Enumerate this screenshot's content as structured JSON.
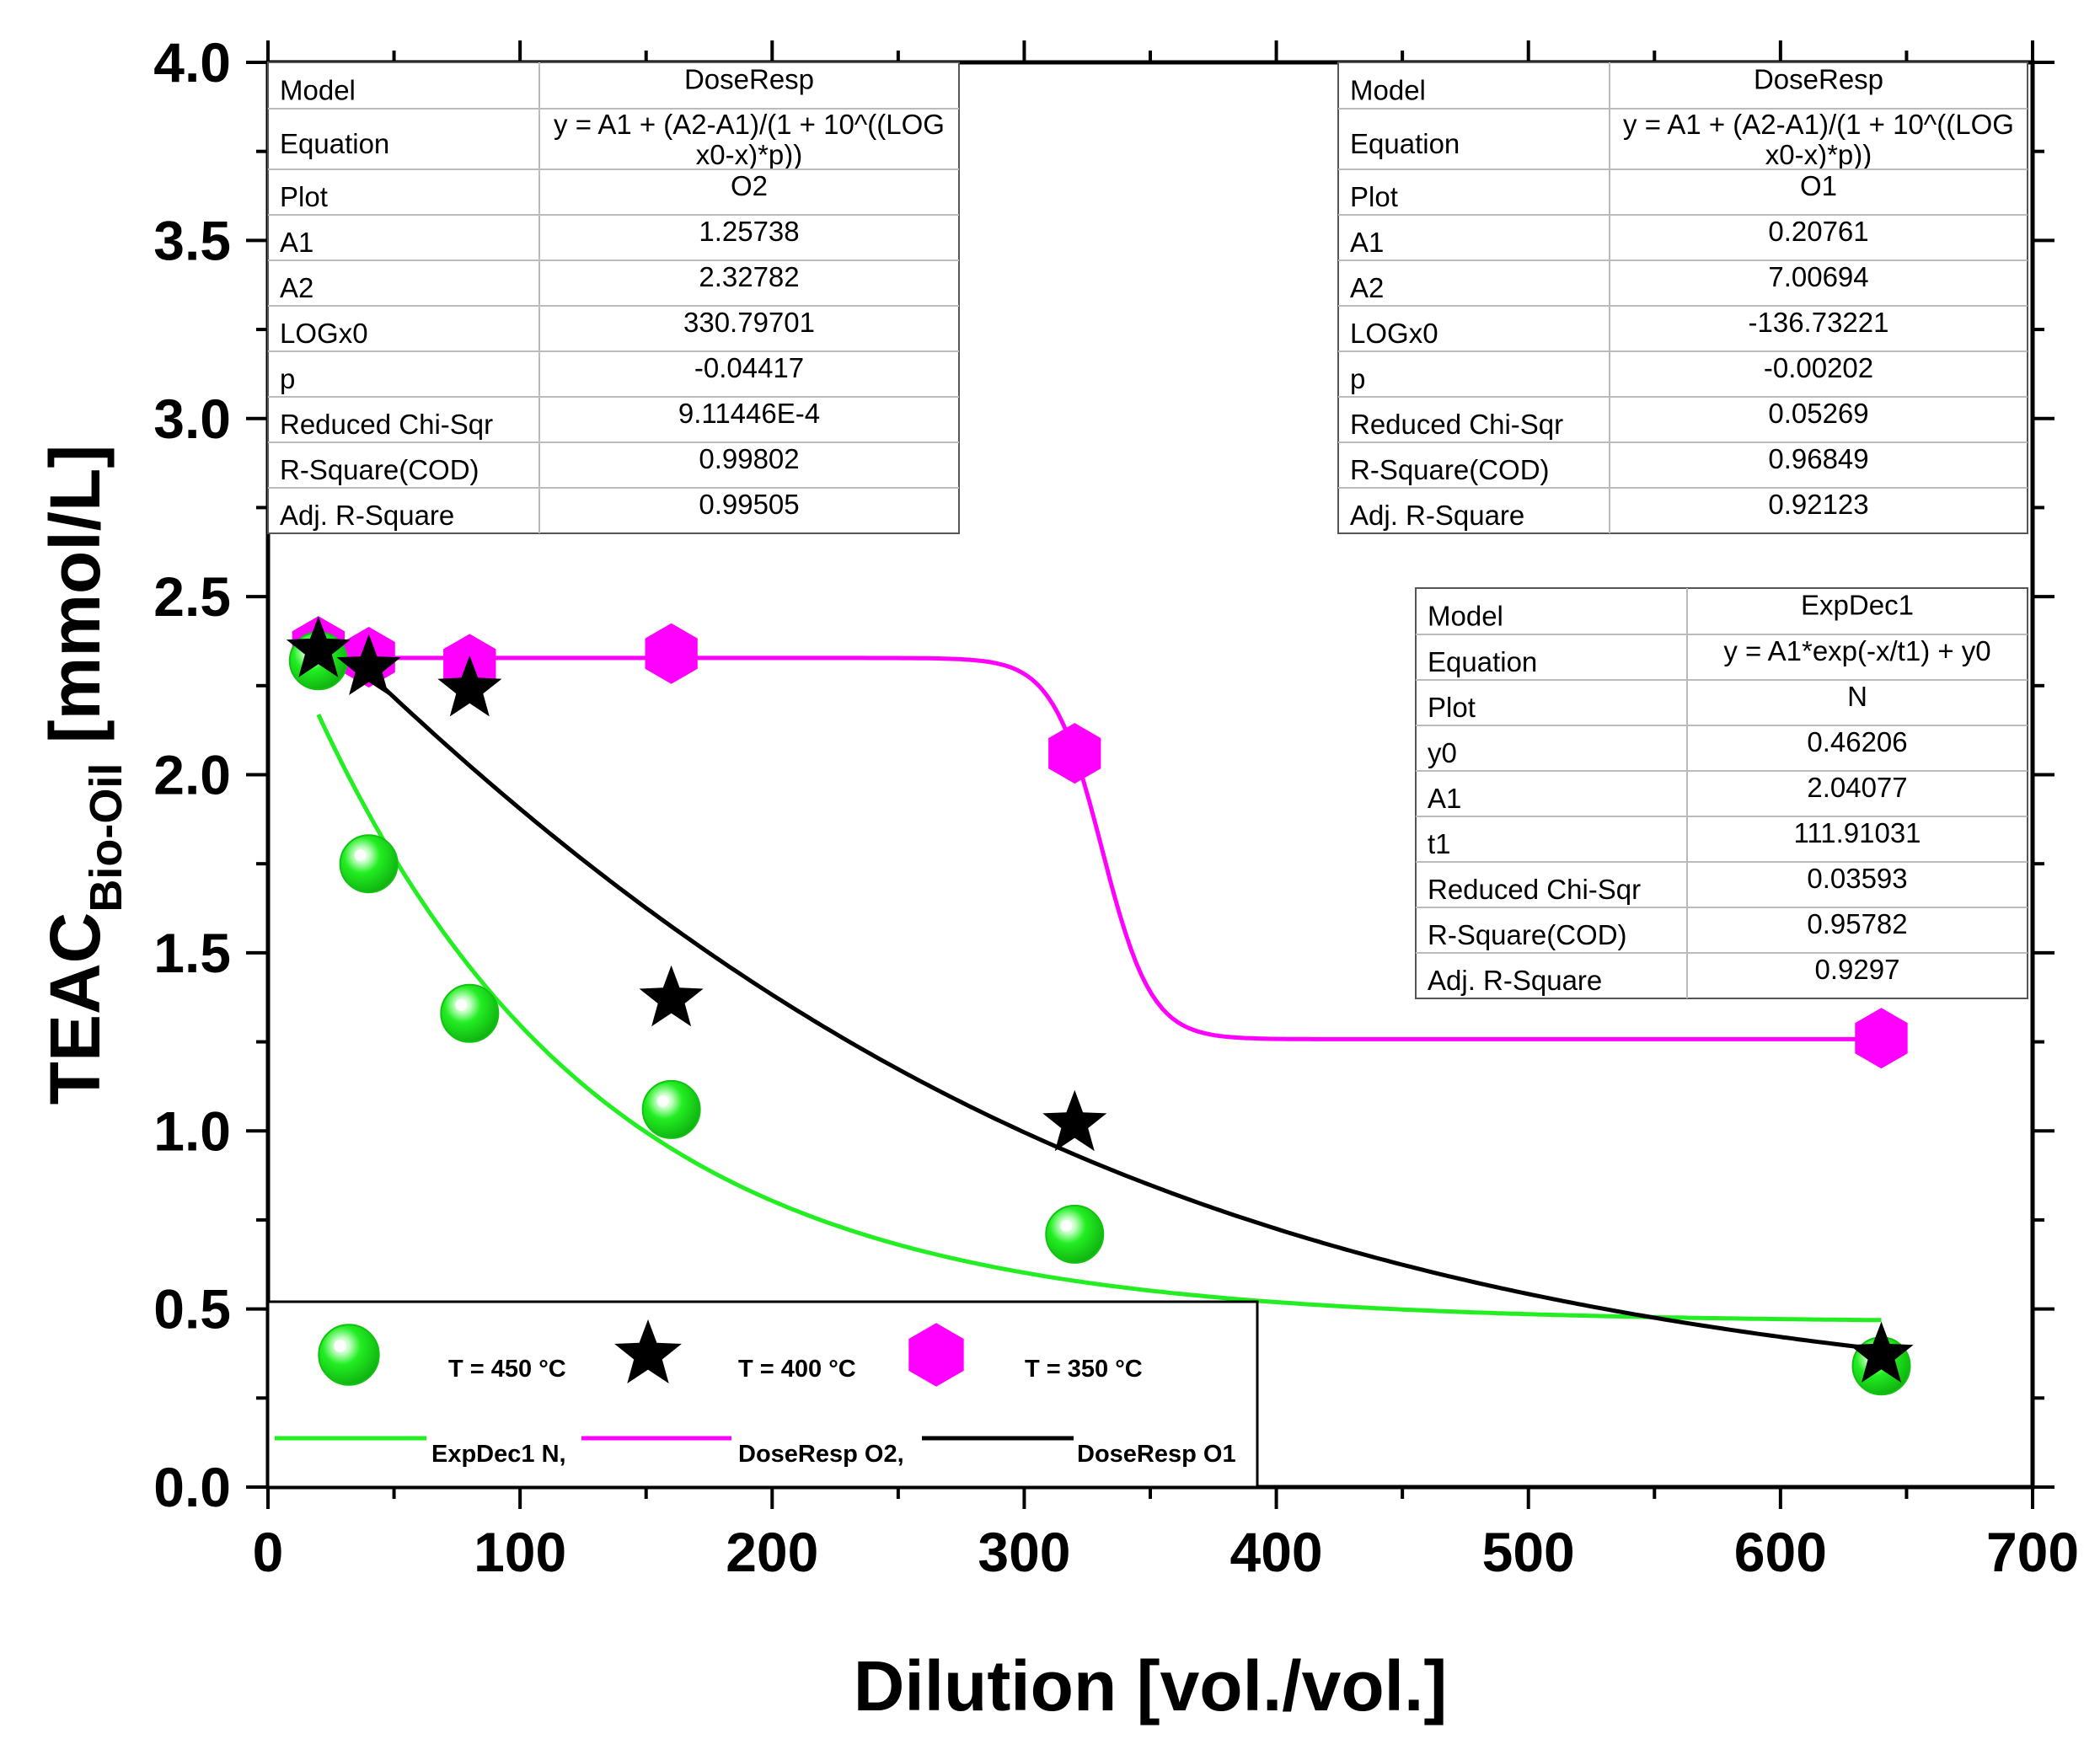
{
  "chart_data": {
    "type": "scatter",
    "xlabel": "Dilution [vol./vol.]",
    "ylabel": {
      "main": "TEAC",
      "sub": "Bio-Oil",
      "unit": " [mmol/L]"
    },
    "xlim": [
      0,
      700
    ],
    "ylim": [
      0.0,
      4.0
    ],
    "xticks": [
      "0",
      "100",
      "200",
      "300",
      "400",
      "500",
      "600",
      "700"
    ],
    "yticks": [
      "0.0",
      "0.5",
      "1.0",
      "1.5",
      "2.0",
      "2.5",
      "3.0",
      "3.5",
      "4.0"
    ],
    "grid": false,
    "series": [
      {
        "name": "T = 450 °C",
        "marker": "sphere",
        "color": "#22ee22",
        "points": [
          [
            20,
            2.32
          ],
          [
            40,
            1.75
          ],
          [
            80,
            1.33
          ],
          [
            160,
            1.06
          ],
          [
            320,
            0.71
          ],
          [
            640,
            0.34
          ]
        ]
      },
      {
        "name": "T = 400 °C",
        "marker": "star",
        "color": "#000000",
        "points": [
          [
            20,
            2.35
          ],
          [
            40,
            2.3
          ],
          [
            80,
            2.24
          ],
          [
            160,
            1.37
          ],
          [
            320,
            1.02
          ],
          [
            640,
            0.37
          ]
        ]
      },
      {
        "name": "T = 350 °C",
        "marker": "hexagon",
        "color": "#ff00ff",
        "points": [
          [
            20,
            2.36
          ],
          [
            40,
            2.33
          ],
          [
            80,
            2.31
          ],
          [
            160,
            2.34
          ],
          [
            320,
            2.06
          ],
          [
            640,
            1.26
          ]
        ]
      }
    ],
    "fits": [
      {
        "name": "ExpDec1 N,",
        "color": "#22ee22",
        "model": "ExpDec1",
        "params": {
          "y0": 0.46206,
          "A1": 2.04077,
          "t1": 111.91031
        },
        "x_range": [
          20,
          640
        ]
      },
      {
        "name": "DoseResp O2,",
        "color": "#ff00ff",
        "model": "DoseResp",
        "params": {
          "A1": 1.25738,
          "A2": 2.32782,
          "LOGx0": 330.79701,
          "p": -0.04417
        },
        "x_range": [
          20,
          640
        ]
      },
      {
        "name": "DoseResp O1",
        "color": "#000000",
        "model": "DoseResp",
        "params": {
          "A1": 0.20761,
          "A2": 7.00694,
          "LOGx0": -136.73221,
          "p": -0.00202
        },
        "x_range": [
          20,
          640
        ]
      }
    ],
    "legend": {
      "placement": "bottom-left"
    },
    "tables": [
      {
        "id": "o2",
        "placement": "top-left",
        "rows": [
          [
            "Model",
            "DoseResp"
          ],
          [
            "Equation",
            "y = A1 + (A2-A1)/(1 + 10^((LOG|x0-x)*p))"
          ],
          [
            "Plot",
            "O2"
          ],
          [
            "A1",
            "1.25738"
          ],
          [
            "A2",
            "2.32782"
          ],
          [
            "LOGx0",
            "330.79701"
          ],
          [
            "p",
            "-0.04417"
          ],
          [
            "Reduced Chi-Sqr",
            "9.11446E-4"
          ],
          [
            "R-Square(COD)",
            "0.99802"
          ],
          [
            "Adj. R-Square",
            "0.99505"
          ]
        ]
      },
      {
        "id": "o1",
        "placement": "top-right",
        "rows": [
          [
            "Model",
            "DoseResp"
          ],
          [
            "Equation",
            "y = A1 + (A2-A1)/(1 + 10^((LOG|x0-x)*p))"
          ],
          [
            "Plot",
            "O1"
          ],
          [
            "A1",
            "0.20761"
          ],
          [
            "A2",
            "7.00694"
          ],
          [
            "LOGx0",
            "-136.73221"
          ],
          [
            "p",
            "-0.00202"
          ],
          [
            "Reduced Chi-Sqr",
            "0.05269"
          ],
          [
            "R-Square(COD)",
            "0.96849"
          ],
          [
            "Adj. R-Square",
            "0.92123"
          ]
        ]
      },
      {
        "id": "n",
        "placement": "right",
        "rows": [
          [
            "Model",
            "ExpDec1"
          ],
          [
            "Equation",
            "y = A1*exp(-x/t1) + y0"
          ],
          [
            "Plot",
            "N"
          ],
          [
            "y0",
            "0.46206"
          ],
          [
            "A1",
            "2.04077"
          ],
          [
            "t1",
            "111.91031"
          ],
          [
            "Reduced Chi-Sqr",
            "0.03593"
          ],
          [
            "R-Square(COD)",
            "0.95782"
          ],
          [
            "Adj. R-Square",
            "0.9297"
          ]
        ]
      }
    ]
  }
}
